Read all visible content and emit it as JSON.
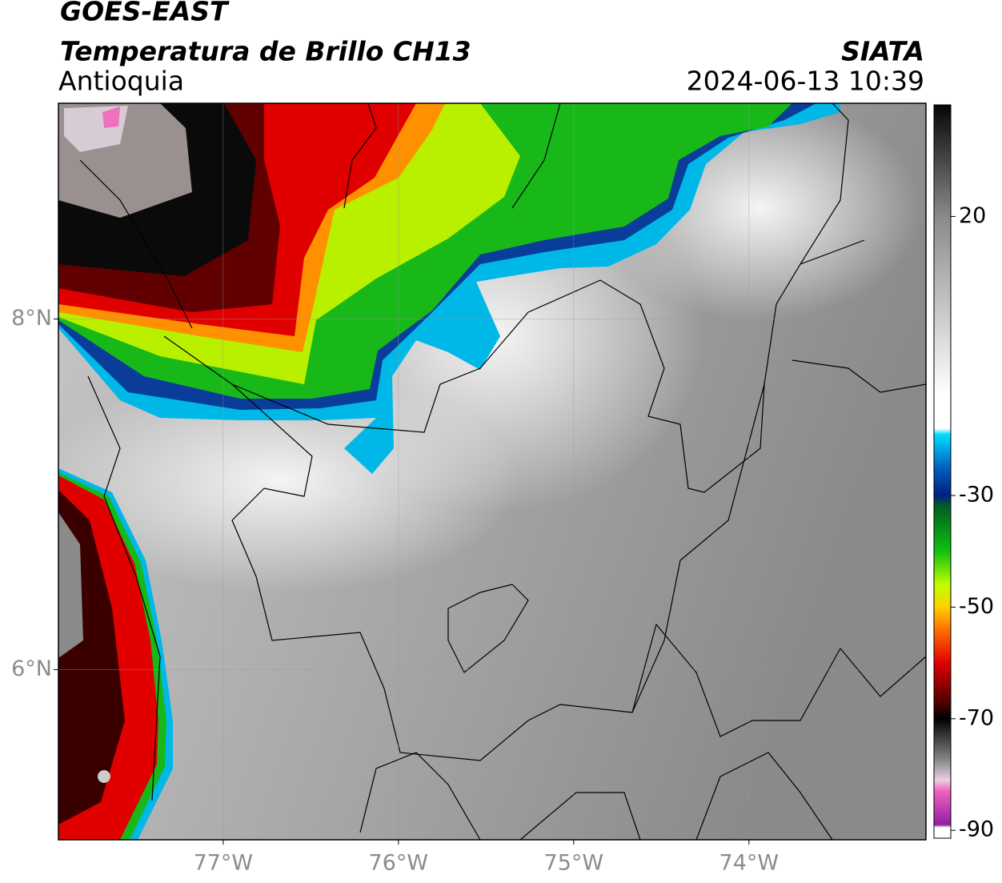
{
  "header": {
    "satellite": "GOES-EAST",
    "product": "Temperatura de Brillo CH13",
    "region": "Antioquia",
    "source": "SIATA",
    "datetime": "2024-06-13 10:39"
  },
  "map": {
    "lonlim": [
      -77.94,
      -72.99
    ],
    "latlim": [
      5.03,
      9.23
    ],
    "lonticks": [
      {
        "value": -77,
        "label": "77°W"
      },
      {
        "value": -76,
        "label": "76°W"
      },
      {
        "value": -75,
        "label": "75°W"
      },
      {
        "value": -74,
        "label": "74°W"
      }
    ],
    "latticks": [
      {
        "value": 8,
        "label": "8°N"
      },
      {
        "value": 6,
        "label": "6°N"
      }
    ]
  },
  "colorbar": {
    "clim": [
      -91.4,
      40
    ],
    "ticks": [
      20,
      -30,
      -50,
      -70,
      -90
    ],
    "colormap": [
      {
        "value": 40,
        "color": "#050505"
      },
      {
        "value": 20,
        "color": "#8a8a8a"
      },
      {
        "value": -12,
        "color": "#ffffff"
      },
      {
        "value": -18,
        "color": "#ffffff"
      },
      {
        "value": -19,
        "color": "#00e0ff"
      },
      {
        "value": -25,
        "color": "#0060c0"
      },
      {
        "value": -30,
        "color": "#002080"
      },
      {
        "value": -32,
        "color": "#006020"
      },
      {
        "value": -40,
        "color": "#10c010"
      },
      {
        "value": -46,
        "color": "#c0ff00"
      },
      {
        "value": -50,
        "color": "#ffd000"
      },
      {
        "value": -54,
        "color": "#ff7000"
      },
      {
        "value": -60,
        "color": "#e00000"
      },
      {
        "value": -67,
        "color": "#500000"
      },
      {
        "value": -70,
        "color": "#000000"
      },
      {
        "value": -77,
        "color": "#808080"
      },
      {
        "value": -81,
        "color": "#e8d0e0"
      },
      {
        "value": -83,
        "color": "#f060c0"
      },
      {
        "value": -89,
        "color": "#9020a0"
      },
      {
        "value": -89.5,
        "color": "#ffffff"
      },
      {
        "value": -91.4,
        "color": "#ffffff"
      }
    ]
  }
}
